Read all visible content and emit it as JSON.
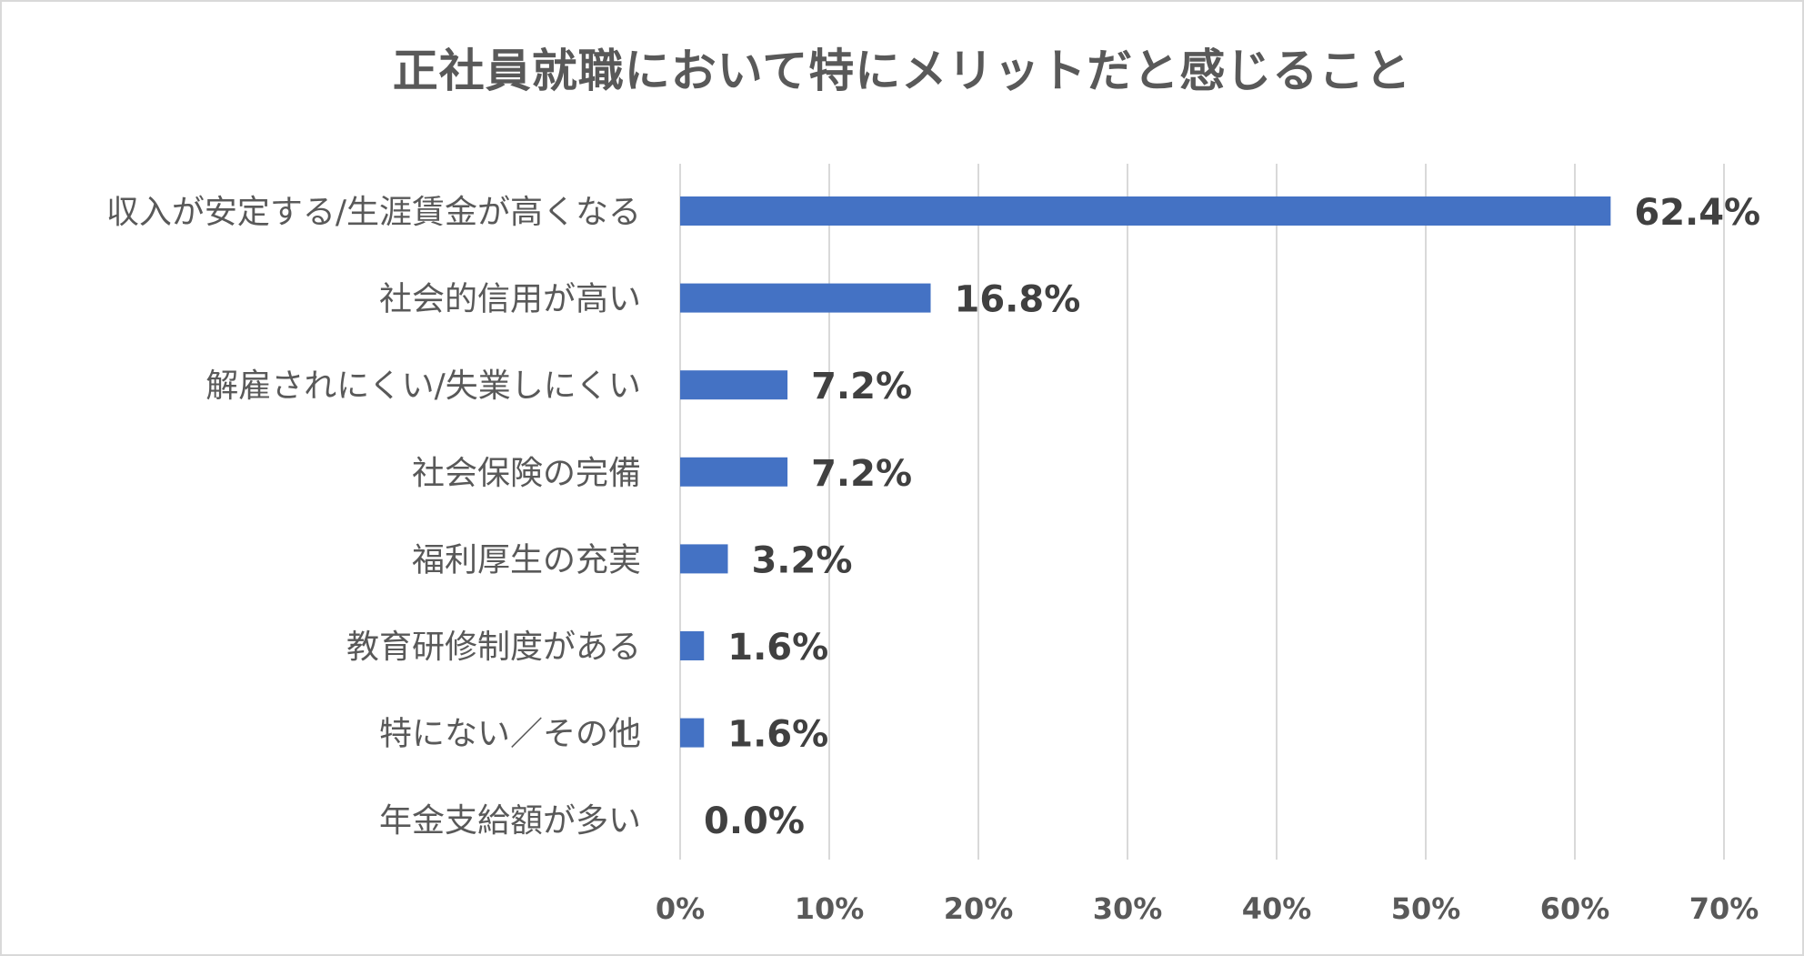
{
  "chart_data": {
    "type": "bar",
    "orientation": "horizontal",
    "title": "正社員就職において特にメリットだと感じること",
    "categories": [
      "収入が安定する/生涯賃金が高くなる",
      "社会的信用が高い",
      "解雇されにくい/失業しにくい",
      "社会保険の完備",
      "福利厚生の充実",
      "教育研修制度がある",
      "特にない／その他",
      "年金支給額が多い"
    ],
    "values": [
      62.4,
      16.8,
      7.2,
      7.2,
      3.2,
      1.6,
      1.6,
      0.0
    ],
    "data_labels": [
      "62.4%",
      "16.8%",
      "7.2%",
      "7.2%",
      "3.2%",
      "1.6%",
      "1.6%",
      "0.0%"
    ],
    "xlim": [
      0,
      70
    ],
    "xticks": [
      0,
      10,
      20,
      30,
      40,
      50,
      60,
      70
    ],
    "xtick_labels": [
      "0%",
      "10%",
      "20%",
      "30%",
      "40%",
      "50%",
      "60%",
      "70%"
    ],
    "xlabel": "",
    "ylabel": "",
    "grid": "vertical",
    "legend": "none",
    "bar_color": "#4472c4",
    "grid_color": "#d9d9d9"
  }
}
